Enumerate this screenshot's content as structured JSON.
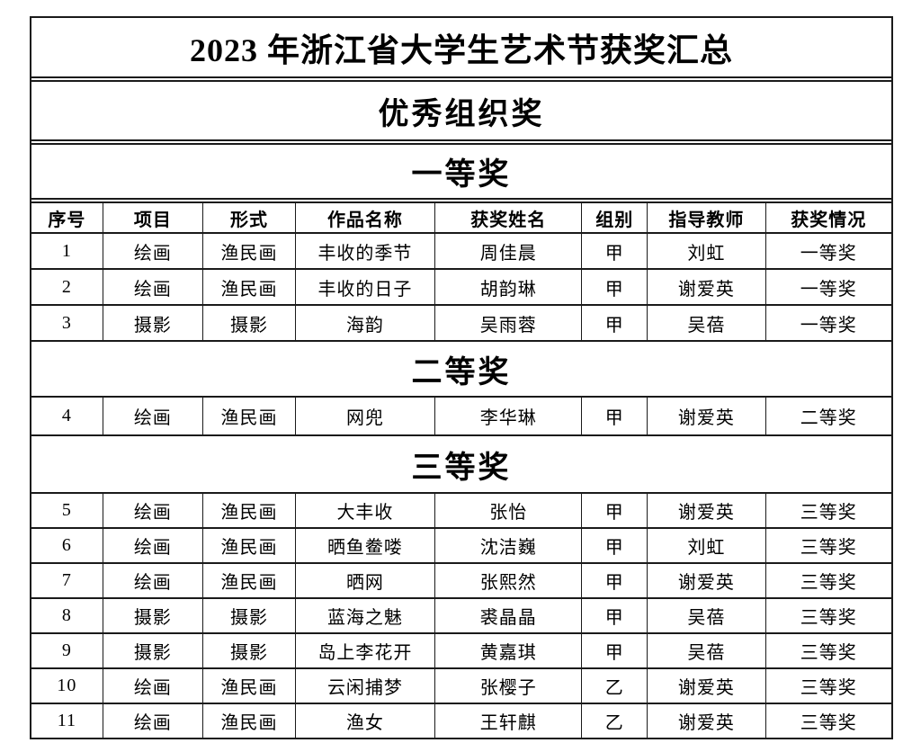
{
  "document": {
    "title": "2023 年浙江省大学生艺术节获奖汇总",
    "subtitle": "优秀组织奖",
    "columns": [
      "序号",
      "项目",
      "形式",
      "作品名称",
      "获奖姓名",
      "组别",
      "指导教师",
      "获奖情况"
    ],
    "sections": [
      {
        "heading": "一等奖",
        "show_header": true,
        "rows": [
          [
            "1",
            "绘画",
            "渔民画",
            "丰收的季节",
            "周佳晨",
            "甲",
            "刘虹",
            "一等奖"
          ],
          [
            "2",
            "绘画",
            "渔民画",
            "丰收的日子",
            "胡韵琳",
            "甲",
            "谢爱英",
            "一等奖"
          ],
          [
            "3",
            "摄影",
            "摄影",
            "海韵",
            "吴雨蓉",
            "甲",
            "吴蓓",
            "一等奖"
          ]
        ]
      },
      {
        "heading": "二等奖",
        "show_header": false,
        "rows": [
          [
            "4",
            "绘画",
            "渔民画",
            "网兜",
            "李华琳",
            "甲",
            "谢爱英",
            "二等奖"
          ]
        ]
      },
      {
        "heading": "三等奖",
        "show_header": false,
        "rows": [
          [
            "5",
            "绘画",
            "渔民画",
            "大丰收",
            "张怡",
            "甲",
            "谢爱英",
            "三等奖"
          ],
          [
            "6",
            "绘画",
            "渔民画",
            "晒鱼鲞喽",
            "沈洁巍",
            "甲",
            "刘虹",
            "三等奖"
          ],
          [
            "7",
            "绘画",
            "渔民画",
            "晒网",
            "张熙然",
            "甲",
            "谢爱英",
            "三等奖"
          ],
          [
            "8",
            "摄影",
            "摄影",
            "蓝海之魅",
            "裘晶晶",
            "甲",
            "吴蓓",
            "三等奖"
          ],
          [
            "9",
            "摄影",
            "摄影",
            "岛上李花开",
            "黄嘉琪",
            "甲",
            "吴蓓",
            "三等奖"
          ],
          [
            "10",
            "绘画",
            "渔民画",
            "云闲捕梦",
            "张樱子",
            "乙",
            "谢爱英",
            "三等奖"
          ],
          [
            "11",
            "绘画",
            "渔民画",
            "渔女",
            "王轩麒",
            "乙",
            "谢爱英",
            "三等奖"
          ]
        ]
      }
    ]
  },
  "colors": {
    "background": "#ffffff",
    "text": "#000000",
    "border": "#1a1a1a"
  }
}
